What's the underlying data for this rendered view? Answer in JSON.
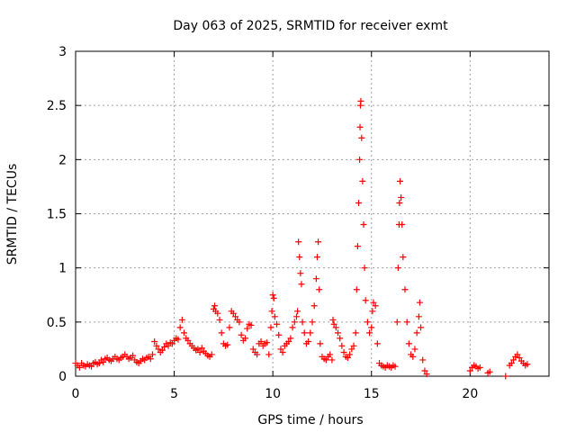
{
  "chart_data": {
    "type": "scatter",
    "title": "Day 063 of 2025, SRMTID for receiver exmt",
    "xlabel": "GPS time / hours",
    "ylabel": "SRMTID / TECUs",
    "xlim": [
      0,
      24
    ],
    "ylim": [
      0,
      3
    ],
    "xticks": [
      0,
      5,
      10,
      15,
      20
    ],
    "xtick_labels": [
      "0",
      "5",
      "10",
      "15",
      "20"
    ],
    "yticks": [
      0,
      0.5,
      1,
      1.5,
      2,
      2.5,
      3
    ],
    "ytick_labels": [
      "0",
      "0.5",
      "1",
      "1.5",
      "2",
      "2.5",
      "3"
    ],
    "grid": true,
    "marker": "+",
    "color": "#ff0000",
    "series": [
      {
        "name": "SRMTID",
        "points": [
          [
            0.0,
            0.12
          ],
          [
            0.1,
            0.1
          ],
          [
            0.2,
            0.08
          ],
          [
            0.3,
            0.12
          ],
          [
            0.4,
            0.1
          ],
          [
            0.5,
            0.09
          ],
          [
            0.6,
            0.11
          ],
          [
            0.7,
            0.1
          ],
          [
            0.8,
            0.09
          ],
          [
            0.9,
            0.12
          ],
          [
            1.0,
            0.13
          ],
          [
            1.1,
            0.11
          ],
          [
            1.2,
            0.12
          ],
          [
            1.3,
            0.15
          ],
          [
            1.4,
            0.13
          ],
          [
            1.5,
            0.16
          ],
          [
            1.6,
            0.17
          ],
          [
            1.7,
            0.15
          ],
          [
            1.8,
            0.14
          ],
          [
            1.9,
            0.16
          ],
          [
            2.0,
            0.18
          ],
          [
            2.1,
            0.16
          ],
          [
            2.2,
            0.15
          ],
          [
            2.3,
            0.17
          ],
          [
            2.4,
            0.18
          ],
          [
            2.5,
            0.2
          ],
          [
            2.6,
            0.18
          ],
          [
            2.7,
            0.16
          ],
          [
            2.8,
            0.17
          ],
          [
            2.9,
            0.19
          ],
          [
            3.0,
            0.15
          ],
          [
            3.1,
            0.13
          ],
          [
            3.2,
            0.12
          ],
          [
            3.3,
            0.14
          ],
          [
            3.4,
            0.16
          ],
          [
            3.5,
            0.15
          ],
          [
            3.6,
            0.17
          ],
          [
            3.7,
            0.18
          ],
          [
            3.8,
            0.16
          ],
          [
            3.9,
            0.2
          ],
          [
            4.0,
            0.32
          ],
          [
            4.1,
            0.28
          ],
          [
            4.2,
            0.25
          ],
          [
            4.3,
            0.22
          ],
          [
            4.4,
            0.24
          ],
          [
            4.5,
            0.27
          ],
          [
            4.6,
            0.3
          ],
          [
            4.7,
            0.28
          ],
          [
            4.8,
            0.31
          ],
          [
            4.9,
            0.3
          ],
          [
            5.0,
            0.33
          ],
          [
            5.1,
            0.35
          ],
          [
            5.2,
            0.34
          ],
          [
            5.3,
            0.45
          ],
          [
            5.4,
            0.52
          ],
          [
            5.5,
            0.4
          ],
          [
            5.6,
            0.35
          ],
          [
            5.7,
            0.33
          ],
          [
            5.8,
            0.3
          ],
          [
            5.9,
            0.28
          ],
          [
            6.0,
            0.26
          ],
          [
            6.1,
            0.24
          ],
          [
            6.2,
            0.25
          ],
          [
            6.3,
            0.22
          ],
          [
            6.4,
            0.26
          ],
          [
            6.5,
            0.23
          ],
          [
            6.6,
            0.21
          ],
          [
            6.7,
            0.19
          ],
          [
            6.8,
            0.18
          ],
          [
            6.9,
            0.2
          ],
          [
            7.0,
            0.62
          ],
          [
            7.05,
            0.65
          ],
          [
            7.1,
            0.6
          ],
          [
            7.2,
            0.58
          ],
          [
            7.3,
            0.52
          ],
          [
            7.4,
            0.4
          ],
          [
            7.5,
            0.3
          ],
          [
            7.6,
            0.28
          ],
          [
            7.7,
            0.29
          ],
          [
            7.8,
            0.45
          ],
          [
            7.9,
            0.6
          ],
          [
            8.0,
            0.58
          ],
          [
            8.1,
            0.55
          ],
          [
            8.2,
            0.52
          ],
          [
            8.3,
            0.5
          ],
          [
            8.4,
            0.38
          ],
          [
            8.5,
            0.33
          ],
          [
            8.6,
            0.35
          ],
          [
            8.7,
            0.44
          ],
          [
            8.8,
            0.48
          ],
          [
            8.9,
            0.47
          ],
          [
            9.0,
            0.25
          ],
          [
            9.1,
            0.22
          ],
          [
            9.2,
            0.2
          ],
          [
            9.3,
            0.3
          ],
          [
            9.4,
            0.32
          ],
          [
            9.5,
            0.28
          ],
          [
            9.6,
            0.3
          ],
          [
            9.7,
            0.31
          ],
          [
            9.8,
            0.2
          ],
          [
            9.9,
            0.45
          ],
          [
            9.95,
            0.6
          ],
          [
            10.0,
            0.75
          ],
          [
            10.05,
            0.72
          ],
          [
            10.1,
            0.55
          ],
          [
            10.2,
            0.48
          ],
          [
            10.3,
            0.38
          ],
          [
            10.4,
            0.25
          ],
          [
            10.5,
            0.22
          ],
          [
            10.6,
            0.28
          ],
          [
            10.7,
            0.3
          ],
          [
            10.8,
            0.32
          ],
          [
            10.9,
            0.35
          ],
          [
            11.0,
            0.45
          ],
          [
            11.1,
            0.5
          ],
          [
            11.2,
            0.55
          ],
          [
            11.25,
            0.6
          ],
          [
            11.3,
            1.24
          ],
          [
            11.35,
            1.1
          ],
          [
            11.4,
            0.95
          ],
          [
            11.45,
            0.85
          ],
          [
            11.5,
            0.5
          ],
          [
            11.6,
            0.4
          ],
          [
            11.7,
            0.3
          ],
          [
            11.8,
            0.32
          ],
          [
            11.9,
            0.4
          ],
          [
            12.0,
            0.5
          ],
          [
            12.1,
            0.65
          ],
          [
            12.2,
            0.9
          ],
          [
            12.25,
            1.1
          ],
          [
            12.3,
            1.24
          ],
          [
            12.35,
            0.8
          ],
          [
            12.4,
            0.3
          ],
          [
            12.5,
            0.18
          ],
          [
            12.6,
            0.16
          ],
          [
            12.7,
            0.15
          ],
          [
            12.8,
            0.18
          ],
          [
            12.9,
            0.2
          ],
          [
            13.0,
            0.15
          ],
          [
            13.05,
            0.52
          ],
          [
            13.1,
            0.48
          ],
          [
            13.2,
            0.45
          ],
          [
            13.3,
            0.4
          ],
          [
            13.4,
            0.35
          ],
          [
            13.5,
            0.28
          ],
          [
            13.6,
            0.22
          ],
          [
            13.7,
            0.18
          ],
          [
            13.8,
            0.17
          ],
          [
            13.9,
            0.2
          ],
          [
            14.0,
            0.25
          ],
          [
            14.1,
            0.28
          ],
          [
            14.2,
            0.4
          ],
          [
            14.25,
            0.8
          ],
          [
            14.3,
            1.2
          ],
          [
            14.35,
            1.6
          ],
          [
            14.4,
            2.0
          ],
          [
            14.42,
            2.3
          ],
          [
            14.44,
            2.5
          ],
          [
            14.46,
            2.54
          ],
          [
            14.5,
            2.2
          ],
          [
            14.55,
            1.8
          ],
          [
            14.6,
            1.4
          ],
          [
            14.65,
            1.0
          ],
          [
            14.7,
            0.7
          ],
          [
            14.8,
            0.5
          ],
          [
            14.9,
            0.4
          ],
          [
            15.0,
            0.45
          ],
          [
            15.05,
            0.6
          ],
          [
            15.1,
            0.68
          ],
          [
            15.2,
            0.65
          ],
          [
            15.3,
            0.3
          ],
          [
            15.4,
            0.12
          ],
          [
            15.5,
            0.1
          ],
          [
            15.6,
            0.09
          ],
          [
            15.7,
            0.08
          ],
          [
            15.8,
            0.1
          ],
          [
            15.9,
            0.09
          ],
          [
            16.0,
            0.08
          ],
          [
            16.1,
            0.1
          ],
          [
            16.2,
            0.09
          ],
          [
            16.3,
            0.5
          ],
          [
            16.35,
            1.0
          ],
          [
            16.4,
            1.4
          ],
          [
            16.42,
            1.6
          ],
          [
            16.45,
            1.8
          ],
          [
            16.5,
            1.65
          ],
          [
            16.55,
            1.4
          ],
          [
            16.6,
            1.1
          ],
          [
            16.7,
            0.8
          ],
          [
            16.8,
            0.5
          ],
          [
            16.9,
            0.3
          ],
          [
            17.0,
            0.2
          ],
          [
            17.1,
            0.18
          ],
          [
            17.2,
            0.25
          ],
          [
            17.3,
            0.4
          ],
          [
            17.4,
            0.55
          ],
          [
            17.45,
            0.68
          ],
          [
            17.5,
            0.45
          ],
          [
            17.6,
            0.15
          ],
          [
            17.7,
            0.05
          ],
          [
            17.8,
            0.02
          ],
          [
            20.0,
            0.05
          ],
          [
            20.1,
            0.08
          ],
          [
            20.2,
            0.1
          ],
          [
            20.3,
            0.09
          ],
          [
            20.4,
            0.07
          ],
          [
            20.5,
            0.08
          ],
          [
            20.9,
            0.03
          ],
          [
            21.0,
            0.04
          ],
          [
            21.8,
            0.0
          ],
          [
            22.0,
            0.1
          ],
          [
            22.1,
            0.12
          ],
          [
            22.2,
            0.15
          ],
          [
            22.3,
            0.18
          ],
          [
            22.4,
            0.2
          ],
          [
            22.5,
            0.17
          ],
          [
            22.6,
            0.14
          ],
          [
            22.7,
            0.12
          ],
          [
            22.8,
            0.1
          ],
          [
            22.9,
            0.11
          ]
        ]
      }
    ]
  }
}
